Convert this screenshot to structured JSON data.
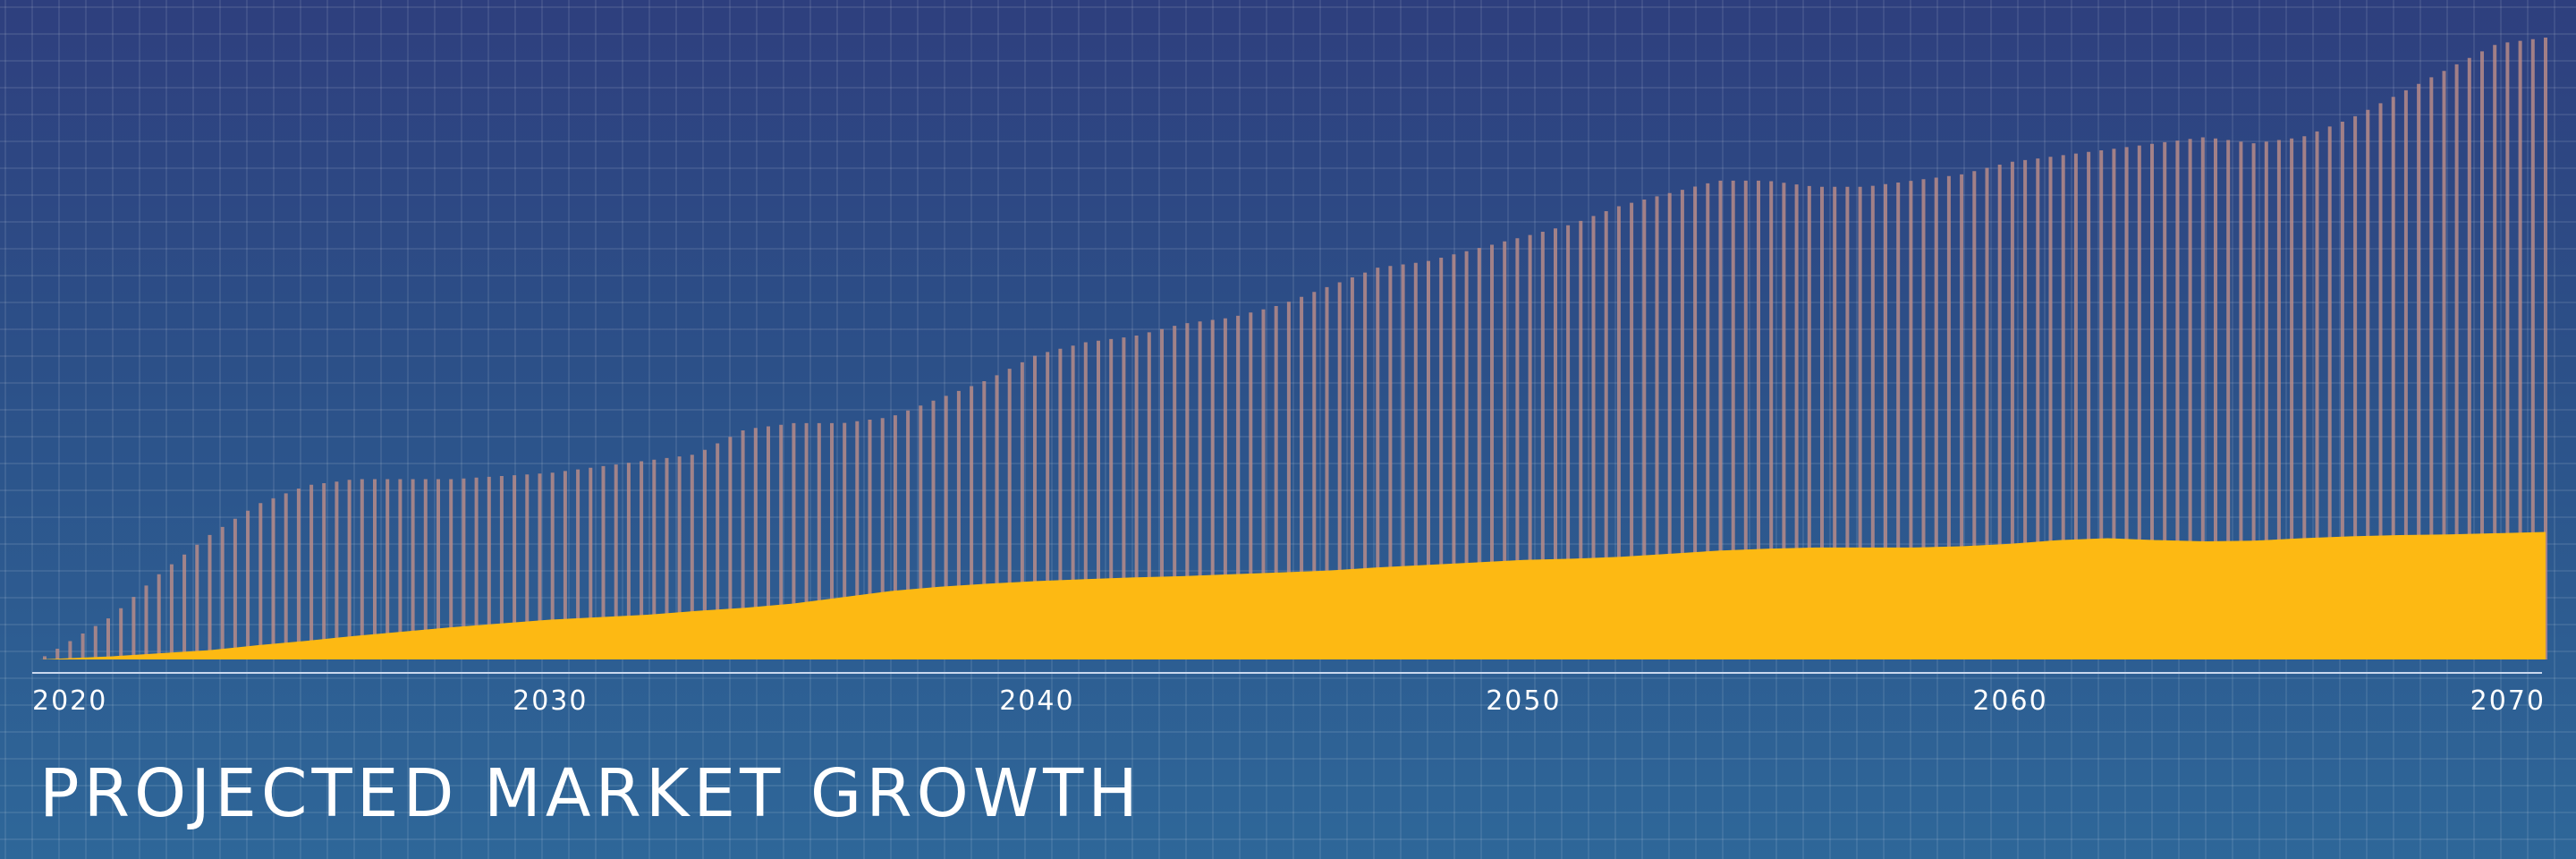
{
  "chart_data": {
    "type": "area",
    "title": "PROJECTED MARKET GROWTH",
    "xlabel": "",
    "ylabel": "",
    "xlim": [
      2019.5,
      2071
    ],
    "ylim": [
      0,
      100
    ],
    "x_ticks": [
      "2020",
      "2030",
      "2040",
      "2050",
      "2060",
      "2070"
    ],
    "grid": true,
    "series": [
      {
        "style": "vertical-lines",
        "color": "#bf8f88",
        "x": [
          2019.5,
          2021,
          2022,
          2023,
          2024,
          2025,
          2026,
          2028,
          2030,
          2032,
          2033,
          2034,
          2035,
          2036,
          2037,
          2038,
          2039,
          2040,
          2041,
          2042,
          2043,
          2044,
          2045,
          2046,
          2047,
          2048,
          2049,
          2050,
          2051,
          2052,
          2053,
          2054,
          2055,
          2056,
          2057,
          2058,
          2059,
          2060,
          2061,
          2062,
          2063,
          2064,
          2065,
          2066,
          2067,
          2068,
          2069,
          2070,
          2071
        ],
        "values": [
          0,
          7,
          14,
          20,
          25,
          28,
          29,
          29,
          30,
          32,
          33,
          37,
          38,
          38,
          39,
          42,
          45,
          49,
          51,
          52,
          54,
          55,
          57,
          60,
          63,
          64,
          66,
          68,
          70,
          73,
          75,
          77,
          77,
          76,
          76,
          77,
          78,
          80,
          81,
          82,
          83,
          84,
          83,
          84,
          87,
          91,
          95,
          99,
          100
        ]
      },
      {
        "style": "filled-area",
        "color": "#fdb913",
        "x": [
          2019.5,
          2021,
          2022,
          2023,
          2024,
          2025,
          2026,
          2028,
          2030,
          2032,
          2033,
          2034,
          2035,
          2036,
          2037,
          2038,
          2039,
          2040,
          2041,
          2042,
          2043,
          2044,
          2045,
          2046,
          2047,
          2048,
          2049,
          2050,
          2051,
          2052,
          2053,
          2054,
          2055,
          2056,
          2057,
          2058,
          2059,
          2060,
          2061,
          2062,
          2063,
          2064,
          2065,
          2066,
          2067,
          2068,
          2069,
          2070,
          2071
        ],
        "values": [
          0,
          0.5,
          1,
          1.5,
          2.3,
          3,
          3.8,
          5.2,
          6.4,
          7.2,
          7.8,
          8.3,
          9,
          10,
          11,
          11.7,
          12.2,
          12.6,
          12.9,
          13.2,
          13.4,
          13.7,
          14,
          14.3,
          14.8,
          15.2,
          15.6,
          16,
          16.2,
          16.5,
          17,
          17.5,
          17.8,
          18,
          18,
          18,
          18.2,
          18.6,
          19.2,
          19.5,
          19.2,
          19,
          19.1,
          19.5,
          19.8,
          20,
          20.1,
          20.3,
          20.5
        ]
      }
    ]
  }
}
